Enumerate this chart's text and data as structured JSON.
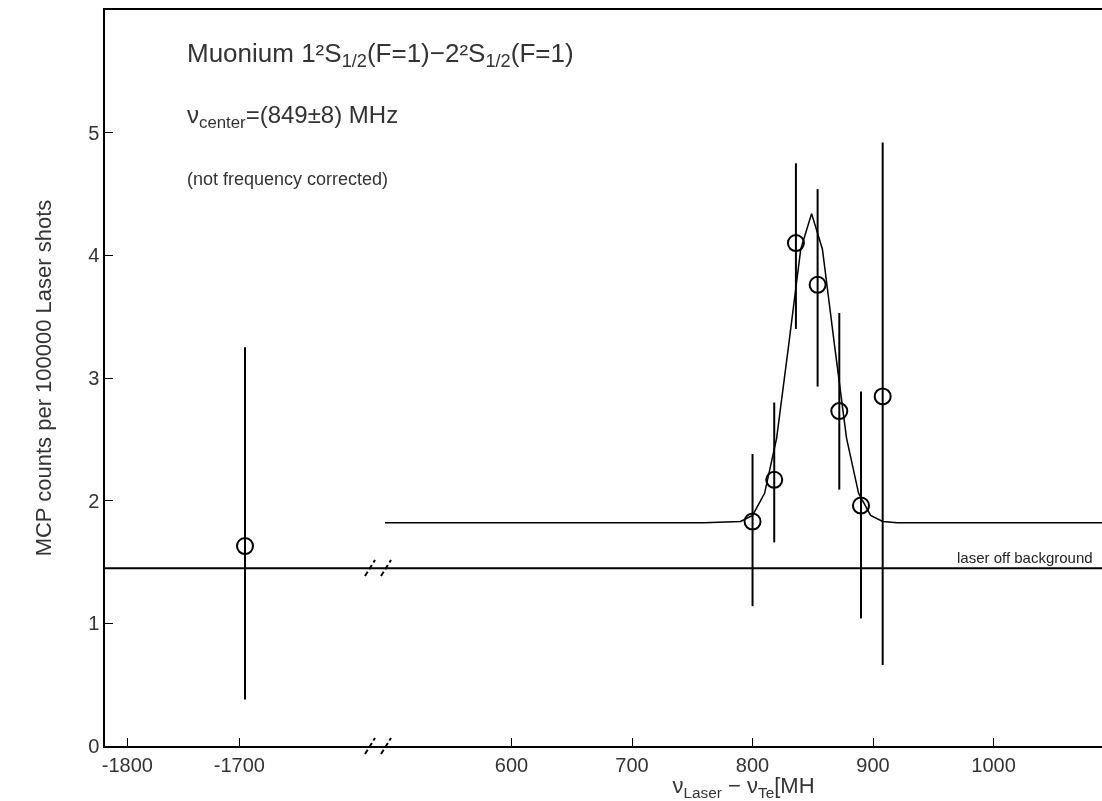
{
  "chart_data": [
    {
      "type": "scatter",
      "ylabel": "MCP counts per 100000 Laser shots",
      "xlim": [
        -1820,
        -1570
      ],
      "xticks": [
        -1800,
        -1700
      ],
      "ylim": [
        0,
        6
      ],
      "yticks": [
        0,
        1,
        2,
        3,
        4,
        5
      ],
      "marker": "circle",
      "x": [
        -1695
      ],
      "series": [
        {
          "color": "#000000",
          "values": [
            1.63
          ],
          "errors": [
            [
              0.38,
              3.25
            ]
          ]
        }
      ],
      "ref_lines": [
        {
          "axis": "y",
          "value": 1.45,
          "color": "#000000"
        }
      ]
    },
    {
      "type": "scatter",
      "xlabel": "ν$_{Laser}$ − ν$_{Te}$[MH",
      "annotations": [
        "Muonium 1²S$_{1/2}$(F=1)−2²S$_{1/2}$(F=1)",
        "ν$_{center}$=(849±8) MHz",
        "(not frequency corrected)"
      ],
      "xlim": [
        495,
        1090
      ],
      "xticks": [
        600,
        700,
        800,
        900,
        1000
      ],
      "ylim": [
        0,
        6
      ],
      "yticks": [
        0,
        1,
        2,
        3,
        4,
        5
      ],
      "tick_labels": "x",
      "marker": "circle",
      "series": [
        {
          "color": "#000000",
          "x": [
            800,
            818,
            836,
            854,
            872,
            890,
            908
          ],
          "values": [
            1.83,
            2.17,
            4.1,
            3.76,
            2.73,
            1.96,
            2.85
          ],
          "errors": [
            [
              1.14,
              2.38
            ],
            [
              1.66,
              2.8
            ],
            [
              3.4,
              4.75
            ],
            [
              2.93,
              4.54
            ],
            [
              2.09,
              3.53
            ],
            [
              1.04,
              2.89
            ],
            [
              0.66,
              4.92
            ]
          ]
        },
        {
          "type": "line",
          "marker": "none",
          "color": "#000000",
          "x": [
            495,
            760,
            790,
            800,
            810,
            820,
            830,
            840,
            849,
            858,
            868,
            878,
            888,
            898,
            908,
            920,
            1090
          ],
          "values": [
            1.82,
            1.82,
            1.83,
            1.88,
            2.06,
            2.51,
            3.27,
            4.05,
            4.34,
            4.05,
            3.27,
            2.51,
            2.06,
            1.88,
            1.83,
            1.82,
            1.82
          ]
        }
      ],
      "ref_lines": [
        {
          "axis": "y",
          "value": 1.45,
          "color": "#000000",
          "label": "laser off background"
        }
      ]
    }
  ]
}
